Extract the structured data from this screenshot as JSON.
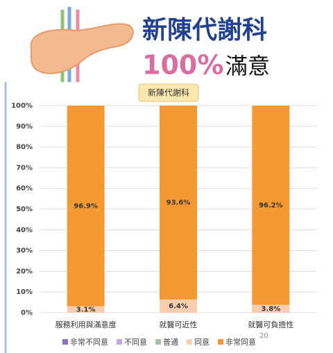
{
  "heading": {
    "title": "新陳代謝科",
    "highlight": "100%",
    "subtitle": "滿意"
  },
  "page_number": "20",
  "chart_data": {
    "type": "stacked-bar",
    "title": "新陳代謝科",
    "categories": [
      "服務利用與滿意度",
      "就醫可近性",
      "就醫可負擔性"
    ],
    "series": [
      {
        "name": "非常不同意",
        "color": "#8e6fd0",
        "values": [
          0,
          0,
          0
        ]
      },
      {
        "name": "不同意",
        "color": "#c6a6ea",
        "values": [
          0,
          0,
          0
        ]
      },
      {
        "name": "普通",
        "color": "#a9c4a0",
        "values": [
          0,
          0,
          0
        ]
      },
      {
        "name": "同意",
        "color": "#f8cdb0",
        "values": [
          3.1,
          6.4,
          3.8
        ],
        "value_labels": [
          "3.1%",
          "6.4%",
          "3.8%"
        ]
      },
      {
        "name": "非常同意",
        "color": "#f59a32",
        "values": [
          96.9,
          93.6,
          96.2
        ],
        "value_labels": [
          "96.9%",
          "93.6%",
          "96.2%"
        ]
      }
    ],
    "ylim": [
      0,
      100
    ],
    "yticks": [
      {
        "value": 0,
        "label": "0%"
      },
      {
        "value": 10,
        "label": "10%"
      },
      {
        "value": 20,
        "label": "20%"
      },
      {
        "value": 30,
        "label": "30%"
      },
      {
        "value": 40,
        "label": "40%"
      },
      {
        "value": 50,
        "label": "50%"
      },
      {
        "value": 60,
        "label": "60%"
      },
      {
        "value": 70,
        "label": "70%"
      },
      {
        "value": 80,
        "label": "80%"
      },
      {
        "value": 90,
        "label": "90%"
      },
      {
        "value": 100,
        "label": "100%"
      }
    ],
    "grid": true,
    "legend": "bottom"
  }
}
